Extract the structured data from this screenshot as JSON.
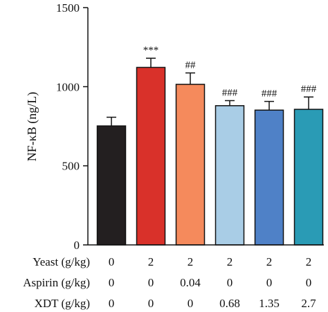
{
  "chart_data": {
    "type": "bar",
    "ylabel": "NF-κB (ng/L)",
    "ylim": [
      0,
      1500
    ],
    "yticks": [
      0,
      500,
      1000,
      1500
    ],
    "error_bars": true,
    "grid": false,
    "series": [
      {
        "values": [
          752,
          1122,
          1015,
          880,
          852,
          857
        ],
        "errors": [
          55,
          58,
          72,
          32,
          55,
          78
        ],
        "significance": [
          "",
          "***",
          "##",
          "###",
          "###",
          "###"
        ],
        "colors": [
          "#231f20",
          "#d9312a",
          "#f58a5c",
          "#a9cde6",
          "#4f81c7",
          "#2a9bb5"
        ]
      }
    ],
    "treatment_table": {
      "rows": [
        {
          "label": "Yeast (g/kg)",
          "values": [
            "0",
            "2",
            "2",
            "2",
            "2",
            "2"
          ]
        },
        {
          "label": "Aspirin (g/kg)",
          "values": [
            "0",
            "0",
            "0.04",
            "0",
            "0",
            "0"
          ]
        },
        {
          "label": "XDT (g/kg)",
          "values": [
            "0",
            "0",
            "0",
            "0.68",
            "1.35",
            "2.7"
          ]
        }
      ]
    }
  }
}
